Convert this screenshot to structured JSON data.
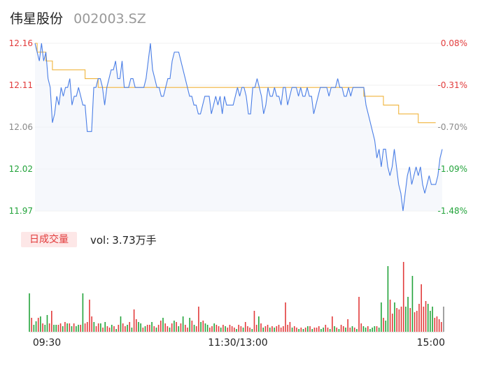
{
  "header": {
    "name": "伟星股份",
    "code": "002003.SZ"
  },
  "volume_tag": "日成交量",
  "volume_label": {
    "prefix": "vol:",
    "value": "3.73万手"
  },
  "colors": {
    "price_line": "#4a7ee6",
    "avg_line": "#f0b43c",
    "up": "#e23b3b",
    "down": "#22a33a",
    "neutral": "#8a8a8a"
  },
  "chart_data": [
    {
      "type": "line",
      "y_ticks_left": [
        "12.16",
        "12.11",
        "12.06",
        "12.02",
        "11.97"
      ],
      "y_ticks_right": [
        "0.08%",
        "-0.31%",
        "-0.70%",
        "-1.09%",
        "-1.48%"
      ],
      "ylim": [
        11.97,
        12.16
      ],
      "x_ticks": [
        "09:30",
        "11:30/13:00",
        "15:00"
      ],
      "price": [
        12.16,
        12.15,
        12.14,
        12.16,
        12.14,
        12.15,
        12.12,
        12.11,
        12.07,
        12.08,
        12.1,
        12.09,
        12.11,
        12.1,
        12.11,
        12.11,
        12.12,
        12.09,
        12.1,
        12.1,
        12.11,
        12.1,
        12.09,
        12.09,
        12.06,
        12.06,
        12.06,
        12.11,
        12.11,
        12.12,
        12.12,
        12.11,
        12.09,
        12.11,
        12.12,
        12.13,
        12.13,
        12.14,
        12.12,
        12.12,
        12.14,
        12.11,
        12.11,
        12.11,
        12.12,
        12.12,
        12.11,
        12.11,
        12.11,
        12.11,
        12.11,
        12.12,
        12.14,
        12.16,
        12.13,
        12.12,
        12.11,
        12.11,
        12.1,
        12.1,
        12.11,
        12.12,
        12.12,
        12.14,
        12.15,
        12.15,
        12.15,
        12.14,
        12.13,
        12.12,
        12.11,
        12.1,
        12.1,
        12.09,
        12.09,
        12.08,
        12.08,
        12.09,
        12.1,
        12.1,
        12.1,
        12.08,
        12.09,
        12.1,
        12.09,
        12.1,
        12.08,
        12.1,
        12.09,
        12.09,
        12.09,
        12.09,
        12.1,
        12.11,
        12.1,
        12.11,
        12.11,
        12.1,
        12.08,
        12.08,
        12.11,
        12.11,
        12.12,
        12.11,
        12.1,
        12.08,
        12.09,
        12.11,
        12.1,
        12.1,
        12.11,
        12.1,
        12.1,
        12.09,
        12.11,
        12.11,
        12.09,
        12.1,
        12.11,
        12.11,
        12.11,
        12.1,
        12.11,
        12.1,
        12.1,
        12.11,
        12.1,
        12.1,
        12.08,
        12.09,
        12.1,
        12.11,
        12.11,
        12.11,
        12.11,
        12.1,
        12.11,
        12.11,
        12.11,
        12.12,
        12.11,
        12.11,
        12.1,
        12.1,
        12.11,
        12.1,
        12.11,
        12.11,
        12.11,
        12.11,
        12.11,
        12.11,
        12.09,
        12.08,
        12.07,
        12.06,
        12.05,
        12.03,
        12.04,
        12.02,
        12.04,
        12.04,
        12.02,
        12.01,
        12.02,
        12.04,
        12.02,
        12.0,
        11.99,
        11.97,
        11.99,
        12.01,
        12.02,
        12.0,
        12.01,
        12.02,
        12.01,
        12.02,
        12.0,
        11.99,
        12.0,
        12.01,
        12.0,
        12.0,
        12.0,
        12.01,
        12.03,
        12.04
      ],
      "avg": [
        12.16,
        12.15,
        12.15,
        12.15,
        12.15,
        12.14,
        12.14,
        12.14,
        12.13,
        12.13,
        12.13,
        12.13,
        12.13,
        12.13,
        12.13,
        12.13,
        12.13,
        12.13,
        12.13,
        12.13,
        12.13,
        12.13,
        12.13,
        12.12,
        12.12,
        12.12,
        12.12,
        12.12,
        12.12,
        12.11,
        12.11,
        12.11,
        12.11,
        12.11,
        12.11,
        12.11,
        12.11,
        12.11,
        12.11,
        12.11,
        12.11,
        12.11,
        12.11,
        12.11,
        12.11,
        12.11,
        12.11,
        12.11,
        12.11,
        12.11,
        12.11,
        12.11,
        12.11,
        12.11,
        12.11,
        12.11,
        12.11,
        12.11,
        12.11,
        12.11,
        12.11,
        12.11,
        12.11,
        12.11,
        12.11,
        12.11,
        12.11,
        12.11,
        12.11,
        12.11,
        12.11,
        12.11,
        12.11,
        12.11,
        12.11,
        12.11,
        12.11,
        12.11,
        12.11,
        12.11,
        12.11,
        12.11,
        12.11,
        12.11,
        12.11,
        12.11,
        12.11,
        12.11,
        12.11,
        12.11,
        12.11,
        12.11,
        12.11,
        12.11,
        12.11,
        12.11,
        12.11,
        12.11,
        12.11,
        12.11,
        12.11,
        12.11,
        12.11,
        12.11,
        12.11,
        12.11,
        12.11,
        12.11,
        12.11,
        12.11,
        12.11,
        12.11,
        12.11,
        12.11,
        12.11,
        12.11,
        12.11,
        12.11,
        12.11,
        12.11,
        12.11,
        12.11,
        12.11,
        12.11,
        12.11,
        12.11,
        12.11,
        12.11,
        12.11,
        12.11,
        12.11,
        12.11,
        12.11,
        12.11,
        12.11,
        12.11,
        12.11,
        12.11,
        12.11,
        12.11,
        12.11,
        12.11,
        12.11,
        12.11,
        12.11,
        12.11,
        12.11,
        12.11,
        12.11,
        12.11,
        12.11,
        12.1,
        12.1,
        12.1,
        12.1,
        12.1,
        12.1,
        12.1,
        12.1,
        12.1,
        12.09,
        12.09,
        12.09,
        12.09,
        12.09,
        12.09,
        12.09,
        12.08,
        12.08,
        12.08,
        12.08,
        12.08,
        12.08,
        12.08,
        12.08,
        12.08,
        12.07,
        12.07,
        12.07,
        12.07,
        12.07,
        12.07,
        12.07,
        12.07,
        12.07
      ],
      "volume": [
        [
          55,
          "down"
        ],
        [
          20,
          "up"
        ],
        [
          10,
          "down"
        ],
        [
          15,
          "down"
        ],
        [
          20,
          "up"
        ],
        [
          22,
          "down"
        ],
        [
          12,
          "up"
        ],
        [
          10,
          "down"
        ],
        [
          24,
          "down"
        ],
        [
          12,
          "up"
        ],
        [
          30,
          "up"
        ],
        [
          10,
          "down"
        ],
        [
          10,
          "down"
        ],
        [
          10,
          "up"
        ],
        [
          12,
          "up"
        ],
        [
          8,
          "down"
        ],
        [
          14,
          "up"
        ],
        [
          12,
          "down"
        ],
        [
          12,
          "up"
        ],
        [
          8,
          "down"
        ],
        [
          12,
          "up"
        ],
        [
          8,
          "down"
        ],
        [
          10,
          "down"
        ],
        [
          10,
          "up"
        ],
        [
          55,
          "down"
        ],
        [
          12,
          "up"
        ],
        [
          14,
          "up"
        ],
        [
          46,
          "up"
        ],
        [
          22,
          "up"
        ],
        [
          14,
          "down"
        ],
        [
          8,
          "up"
        ],
        [
          12,
          "up"
        ],
        [
          12,
          "down"
        ],
        [
          6,
          "up"
        ],
        [
          14,
          "down"
        ],
        [
          8,
          "up"
        ],
        [
          6,
          "up"
        ],
        [
          10,
          "down"
        ],
        [
          8,
          "up"
        ],
        [
          4,
          "down"
        ],
        [
          10,
          "up"
        ],
        [
          22,
          "down"
        ],
        [
          12,
          "up"
        ],
        [
          8,
          "up"
        ],
        [
          10,
          "down"
        ],
        [
          14,
          "up"
        ],
        [
          6,
          "down"
        ],
        [
          32,
          "up"
        ],
        [
          18,
          "up"
        ],
        [
          14,
          "down"
        ],
        [
          12,
          "down"
        ],
        [
          6,
          "up"
        ],
        [
          8,
          "down"
        ],
        [
          10,
          "up"
        ],
        [
          10,
          "up"
        ],
        [
          14,
          "down"
        ],
        [
          8,
          "up"
        ],
        [
          6,
          "down"
        ],
        [
          10,
          "up"
        ],
        [
          16,
          "up"
        ],
        [
          20,
          "down"
        ],
        [
          12,
          "up"
        ],
        [
          8,
          "up"
        ],
        [
          6,
          "down"
        ],
        [
          12,
          "up"
        ],
        [
          16,
          "down"
        ],
        [
          14,
          "up"
        ],
        [
          8,
          "down"
        ],
        [
          12,
          "up"
        ],
        [
          22,
          "down"
        ],
        [
          10,
          "up"
        ],
        [
          6,
          "up"
        ],
        [
          20,
          "down"
        ],
        [
          16,
          "up"
        ],
        [
          10,
          "down"
        ],
        [
          8,
          "up"
        ],
        [
          36,
          "up"
        ],
        [
          14,
          "down"
        ],
        [
          16,
          "up"
        ],
        [
          12,
          "down"
        ],
        [
          10,
          "down"
        ],
        [
          6,
          "up"
        ],
        [
          8,
          "up"
        ],
        [
          12,
          "down"
        ],
        [
          10,
          "up"
        ],
        [
          8,
          "up"
        ],
        [
          6,
          "down"
        ],
        [
          10,
          "up"
        ],
        [
          8,
          "down"
        ],
        [
          6,
          "up"
        ],
        [
          10,
          "up"
        ],
        [
          8,
          "up"
        ],
        [
          6,
          "up"
        ],
        [
          4,
          "down"
        ],
        [
          10,
          "up"
        ],
        [
          8,
          "up"
        ],
        [
          6,
          "down"
        ],
        [
          14,
          "up"
        ],
        [
          8,
          "up"
        ],
        [
          6,
          "up"
        ],
        [
          4,
          "down"
        ],
        [
          30,
          "up"
        ],
        [
          10,
          "up"
        ],
        [
          22,
          "down"
        ],
        [
          12,
          "up"
        ],
        [
          6,
          "down"
        ],
        [
          8,
          "up"
        ],
        [
          10,
          "up"
        ],
        [
          6,
          "down"
        ],
        [
          8,
          "up"
        ],
        [
          6,
          "down"
        ],
        [
          8,
          "up"
        ],
        [
          10,
          "up"
        ],
        [
          6,
          "up"
        ],
        [
          8,
          "up"
        ],
        [
          42,
          "up"
        ],
        [
          10,
          "up"
        ],
        [
          14,
          "up"
        ],
        [
          6,
          "down"
        ],
        [
          8,
          "up"
        ],
        [
          6,
          "up"
        ],
        [
          4,
          "down"
        ],
        [
          6,
          "up"
        ],
        [
          4,
          "down"
        ],
        [
          6,
          "up"
        ],
        [
          8,
          "down"
        ],
        [
          8,
          "up"
        ],
        [
          4,
          "down"
        ],
        [
          6,
          "up"
        ],
        [
          6,
          "up"
        ],
        [
          8,
          "up"
        ],
        [
          4,
          "down"
        ],
        [
          6,
          "down"
        ],
        [
          10,
          "up"
        ],
        [
          6,
          "up"
        ],
        [
          4,
          "down"
        ],
        [
          22,
          "up"
        ],
        [
          8,
          "down"
        ],
        [
          6,
          "up"
        ],
        [
          4,
          "down"
        ],
        [
          10,
          "up"
        ],
        [
          8,
          "up"
        ],
        [
          6,
          "down"
        ],
        [
          18,
          "up"
        ],
        [
          6,
          "up"
        ],
        [
          8,
          "down"
        ],
        [
          6,
          "up"
        ],
        [
          4,
          "down"
        ],
        [
          50,
          "up"
        ],
        [
          12,
          "up"
        ],
        [
          8,
          "down"
        ],
        [
          6,
          "down"
        ],
        [
          8,
          "up"
        ],
        [
          4,
          "down"
        ],
        [
          6,
          "down"
        ],
        [
          8,
          "down"
        ],
        [
          8,
          "up"
        ],
        [
          6,
          "down"
        ],
        [
          42,
          "down"
        ],
        [
          20,
          "up"
        ],
        [
          16,
          "down"
        ],
        [
          94,
          "down"
        ],
        [
          46,
          "up"
        ],
        [
          26,
          "up"
        ],
        [
          42,
          "down"
        ],
        [
          34,
          "up"
        ],
        [
          32,
          "up"
        ],
        [
          36,
          "up"
        ],
        [
          100,
          "up"
        ],
        [
          36,
          "down"
        ],
        [
          50,
          "down"
        ],
        [
          34,
          "up"
        ],
        [
          80,
          "down"
        ],
        [
          28,
          "up"
        ],
        [
          30,
          "up"
        ],
        [
          40,
          "up"
        ],
        [
          68,
          "up"
        ],
        [
          36,
          "up"
        ],
        [
          44,
          "up"
        ],
        [
          40,
          "down"
        ],
        [
          30,
          "down"
        ],
        [
          36,
          "down"
        ],
        [
          20,
          "up"
        ],
        [
          22,
          "up"
        ],
        [
          18,
          "up"
        ],
        [
          14,
          "up"
        ],
        [
          36,
          "neutral"
        ]
      ]
    }
  ]
}
